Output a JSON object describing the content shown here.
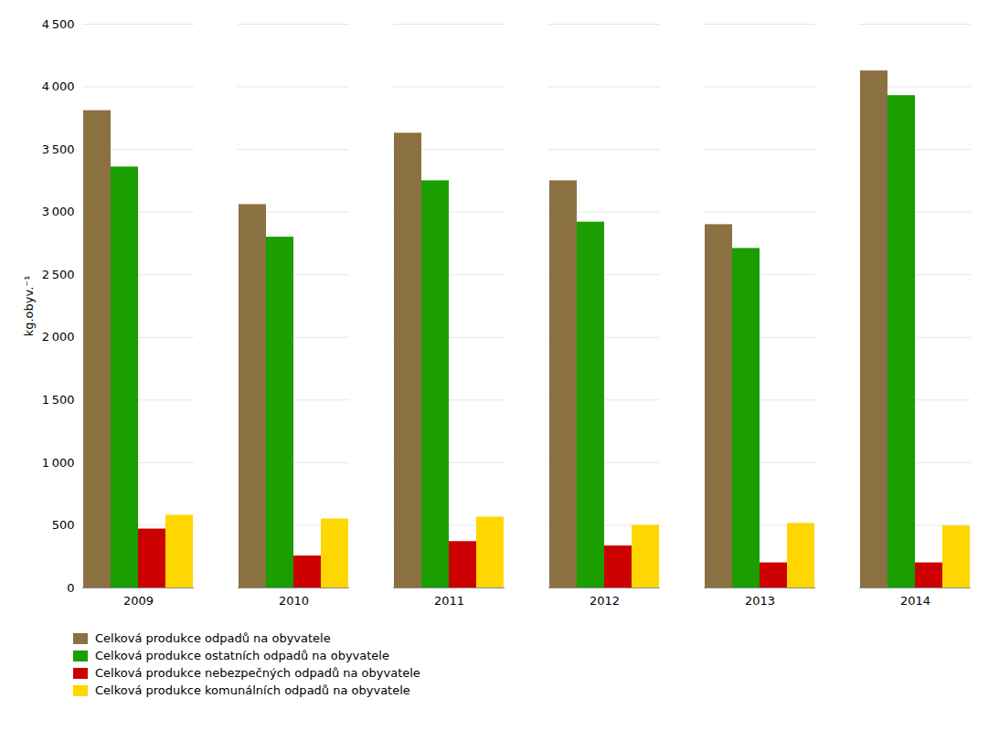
{
  "chart_data": {
    "type": "bar",
    "categories": [
      "2009",
      "2010",
      "2011",
      "2012",
      "2013",
      "2014"
    ],
    "series": [
      {
        "name": "Celková produkce odpadů na obyvatele",
        "color": "#8B7042",
        "values": [
          3810,
          3060,
          3630,
          3250,
          2900,
          4127
        ]
      },
      {
        "name": "Celková produkce ostatních odpadů na obyvatele",
        "color": "#1A9E00",
        "values": [
          3360,
          2800,
          3250,
          2920,
          2710,
          3930
        ]
      },
      {
        "name": "Celková produkce nebezpečných odpadů na obyvatele",
        "color": "#CC0000",
        "values": [
          470,
          255,
          370,
          335,
          200,
          200
        ]
      },
      {
        "name": "Celková produkce komunálních odpadů na obyvatele",
        "color": "#FFD700",
        "values": [
          580,
          550,
          565,
          500,
          515,
          495
        ]
      }
    ],
    "ylabel": "kg.obyv.⁻¹",
    "ylim": [
      0,
      4500
    ],
    "yticks": [
      0,
      500,
      {
        "value": 1000,
        "label": "1 000"
      },
      {
        "value": 1500,
        "label": "1 500"
      },
      {
        "value": 2000,
        "label": "2 000"
      },
      {
        "value": 2500,
        "label": "2 500"
      },
      {
        "value": 3000,
        "label": "3 000"
      },
      {
        "value": 3500,
        "label": "3 500"
      },
      {
        "value": 4000,
        "label": "4 000"
      },
      {
        "value": 4500,
        "label": "4 500"
      }
    ],
    "grid": true,
    "legend": "bottom"
  }
}
